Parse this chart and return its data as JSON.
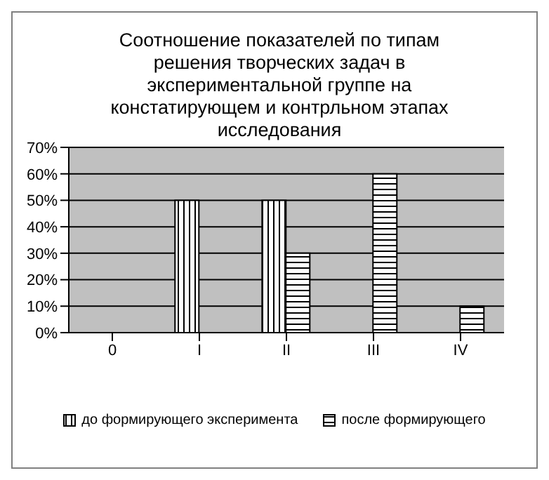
{
  "chart_data": {
    "type": "bar",
    "title": "Соотношение показателей по типам решения творческих задач в экспериментальной группе на констатирующем и контрльном этапах исследования",
    "categories": [
      "0",
      "I",
      "II",
      "III",
      "IV"
    ],
    "series": [
      {
        "name": "до формирующего эксперимента",
        "color": "#000000",
        "values": [
          0,
          50,
          50,
          0,
          0
        ]
      },
      {
        "name": "после формирующего",
        "color": "#000000",
        "values": [
          0,
          0,
          30,
          60,
          10
        ]
      }
    ],
    "ylim": [
      0,
      70
    ],
    "yticks": [
      {
        "value": 0,
        "label": "0%"
      },
      {
        "value": 10,
        "label": "10%"
      },
      {
        "value": 20,
        "label": "20%"
      },
      {
        "value": 30,
        "label": "30%"
      },
      {
        "value": 40,
        "label": "40%"
      },
      {
        "value": 50,
        "label": "50%"
      },
      {
        "value": 60,
        "label": "60%"
      },
      {
        "value": 70,
        "label": "70%"
      }
    ],
    "grid": "y",
    "legend": "bottom"
  }
}
